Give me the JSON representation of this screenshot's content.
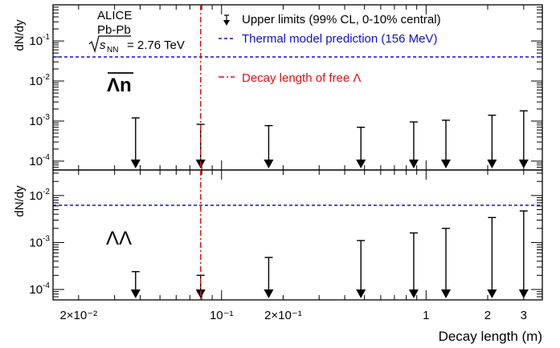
{
  "chart_data": {
    "type": "scatter",
    "x_scale": "log",
    "y_scale": "log",
    "xlim": [
      0.015,
      3.7
    ],
    "xlabel": "Decay length (m)",
    "x_ticks": [
      {
        "value": 0.02,
        "label": "2×10⁻²"
      },
      {
        "value": 0.1,
        "label": "10⁻¹"
      },
      {
        "value": 0.2,
        "label": "2×10⁻¹"
      },
      {
        "value": 1,
        "label": "1"
      },
      {
        "value": 2,
        "label": "2"
      },
      {
        "value": 3,
        "label": "3"
      }
    ],
    "annotations": {
      "experiment": "ALICE",
      "system": "Pb-Pb",
      "energy_sqrt": "s",
      "energy_sub": "NN",
      "energy_value": "= 2.76 TeV"
    },
    "legend": {
      "upper_limits": "Upper limits (99% CL, 0-10% central)",
      "thermal": "Thermal model prediction (156 MeV)",
      "decay": "Decay length of free Λ"
    },
    "decay_length_free_lambda": 0.079,
    "colors": {
      "thermal": "#1010c8",
      "decay": "#e01010",
      "markers": "#000000"
    },
    "panels": [
      {
        "label": "Λn",
        "label_overline": true,
        "ylabel": "dN/dy",
        "ylim": [
          6e-05,
          0.8
        ],
        "y_ticks": [
          {
            "value": 0.0001,
            "base": "10",
            "exp": "-4"
          },
          {
            "value": 0.001,
            "base": "10",
            "exp": "-3"
          },
          {
            "value": 0.01,
            "base": "10",
            "exp": "-2"
          },
          {
            "value": 0.1,
            "base": "10",
            "exp": "-1"
          }
        ],
        "thermal_prediction": 0.04,
        "upper_limits": [
          {
            "x": 0.038,
            "y": 0.0012
          },
          {
            "x": 0.079,
            "y": 0.00083
          },
          {
            "x": 0.17,
            "y": 0.00077
          },
          {
            "x": 0.48,
            "y": 0.0007
          },
          {
            "x": 0.87,
            "y": 0.00095
          },
          {
            "x": 1.25,
            "y": 0.00105
          },
          {
            "x": 2.1,
            "y": 0.0014
          },
          {
            "x": 3.0,
            "y": 0.0018
          }
        ]
      },
      {
        "label": "ΛΛ",
        "label_overline": false,
        "ylabel": "dN/dy",
        "ylim": [
          6e-05,
          0.035
        ],
        "y_ticks": [
          {
            "value": 0.0001,
            "base": "10",
            "exp": "-4"
          },
          {
            "value": 0.001,
            "base": "10",
            "exp": "-3"
          },
          {
            "value": 0.01,
            "base": "10",
            "exp": "-2"
          }
        ],
        "thermal_prediction": 0.0062,
        "upper_limits": [
          {
            "x": 0.038,
            "y": 0.00024
          },
          {
            "x": 0.079,
            "y": 0.0002
          },
          {
            "x": 0.17,
            "y": 0.00048
          },
          {
            "x": 0.48,
            "y": 0.0011
          },
          {
            "x": 0.87,
            "y": 0.0016
          },
          {
            "x": 1.25,
            "y": 0.002
          },
          {
            "x": 2.1,
            "y": 0.0034
          },
          {
            "x": 3.0,
            "y": 0.0047
          }
        ]
      }
    ]
  }
}
